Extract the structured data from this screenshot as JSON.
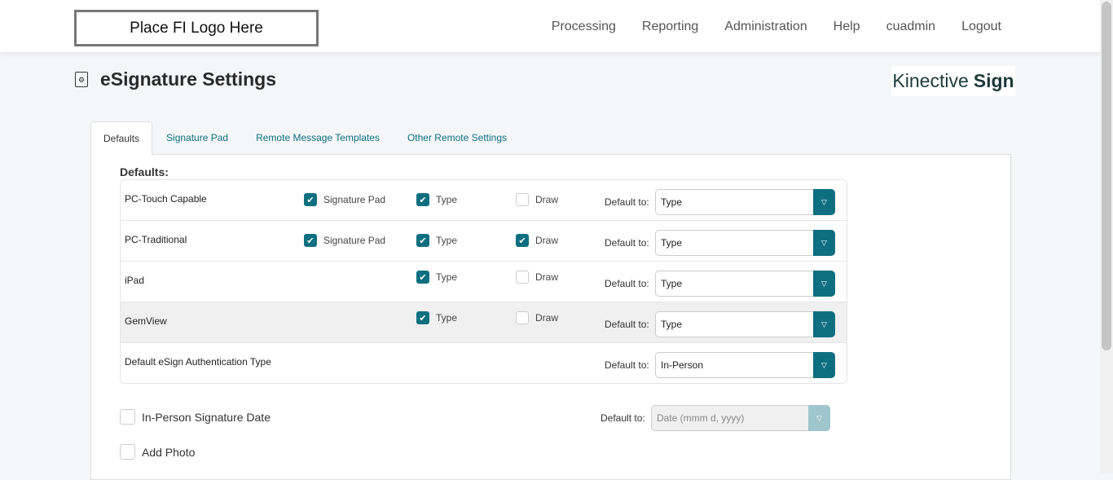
{
  "header": {
    "logo": "Place FI Logo Here",
    "nav": [
      "Processing",
      "Reporting",
      "Administration",
      "Help",
      "cuadmin",
      "Logout"
    ]
  },
  "page": {
    "title": "eSignature Settings",
    "brand_light": "Kinective",
    "brand_bold": "Sign"
  },
  "tabs": [
    "Defaults",
    "Signature Pad",
    "Remote Message Templates",
    "Other Remote Settings"
  ],
  "section_label": "Defaults:",
  "accent": "#0e6f80",
  "rows": [
    {
      "label": "PC-Touch Capable",
      "sigpad": true,
      "type": true,
      "draw": false,
      "default": "Type"
    },
    {
      "label": "PC-Traditional",
      "sigpad": true,
      "type": true,
      "draw": true,
      "default": "Type"
    },
    {
      "label": "iPad",
      "type": true,
      "draw": false,
      "default": "Type"
    },
    {
      "label": "GemView",
      "type": true,
      "draw": false,
      "default": "Type"
    },
    {
      "label": "Default eSign Authentication Type",
      "default": "In-Person"
    }
  ],
  "labels": {
    "sigpad": "Signature Pad",
    "type": "Type",
    "draw": "Draw",
    "default_to": "Default to:"
  },
  "options": {
    "in_person_date": {
      "label": "In-Person Signature Date",
      "checked": false,
      "default_placeholder": "Date (mmm d, yyyy)"
    },
    "add_photo": {
      "label": "Add Photo",
      "checked": false
    }
  }
}
